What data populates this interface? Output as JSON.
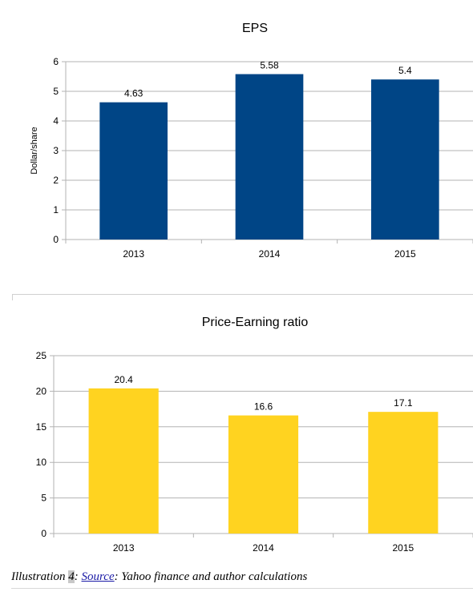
{
  "chart_data": [
    {
      "type": "bar",
      "title": "EPS",
      "xlabel": "",
      "ylabel": "Dollar/share",
      "categories": [
        "2013",
        "2014",
        "2015"
      ],
      "values": [
        4.63,
        5.58,
        5.4
      ],
      "data_labels": [
        "4.63",
        "5.58",
        "5.4"
      ],
      "ylim": [
        0,
        6
      ],
      "yticks": [
        "0",
        "1",
        "2",
        "3",
        "4",
        "5",
        "6"
      ],
      "grid": true,
      "color": "#004586"
    },
    {
      "type": "bar",
      "title": "Price-Earning ratio",
      "xlabel": "",
      "ylabel": "",
      "categories": [
        "2013",
        "2014",
        "2015"
      ],
      "values": [
        20.4,
        16.6,
        17.1
      ],
      "data_labels": [
        "20.4",
        "16.6",
        "17.1"
      ],
      "ylim": [
        0,
        25
      ],
      "yticks": [
        "0",
        "5",
        "10",
        "15",
        "20",
        "25"
      ],
      "grid": true,
      "color": "#FFD320"
    }
  ],
  "caption": {
    "prefix": "Illustration ",
    "number": "4",
    "sep": ": ",
    "link": "Source",
    "rest": ": Yahoo finance and author calculations"
  }
}
